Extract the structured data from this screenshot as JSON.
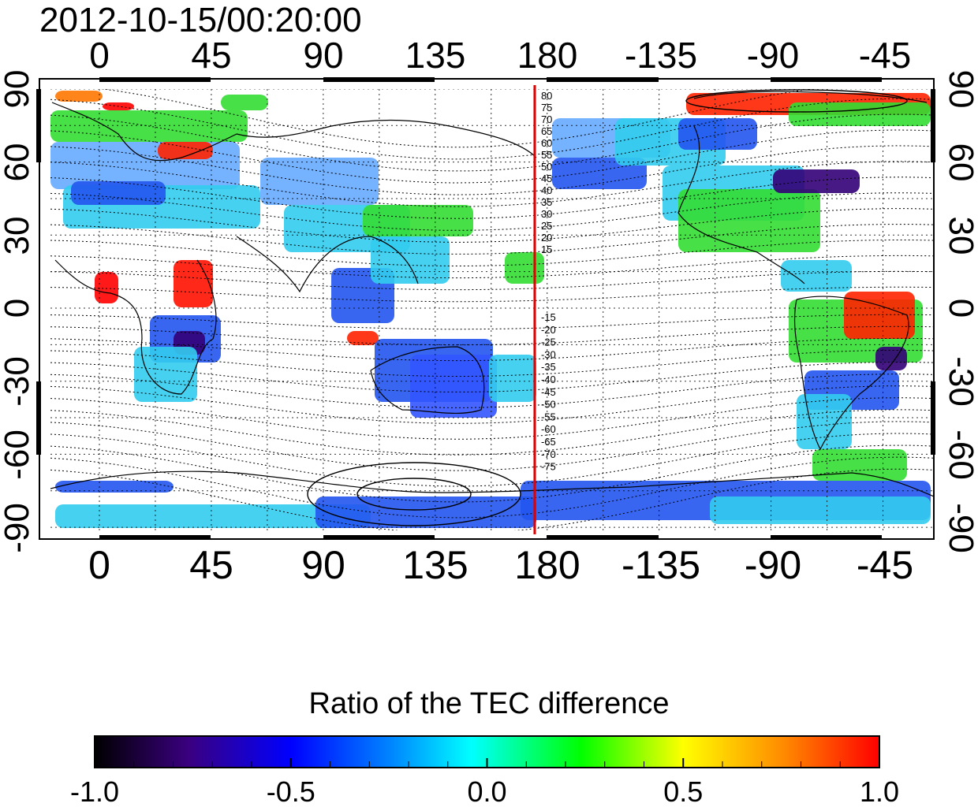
{
  "title": "2012-10-15/00:20:00",
  "axes": {
    "lon_top": [
      "0",
      "45",
      "90",
      "135",
      "180",
      "-135",
      "-90",
      "-45"
    ],
    "lon_bottom": [
      "0",
      "45",
      "90",
      "135",
      "180",
      "-135",
      "-90",
      "-45"
    ],
    "lat_left": [
      "90",
      "60",
      "30",
      "0",
      "-30",
      "-60",
      "-90"
    ],
    "lat_right": [
      "90",
      "60",
      "30",
      "0",
      "-30",
      "-60",
      "-90"
    ]
  },
  "meridian_line": {
    "longitude": 175,
    "color": "#e00000"
  },
  "contour_labels_north": [
    "80",
    "75",
    "70",
    "65",
    "60",
    "55",
    "50",
    "45",
    "40",
    "35",
    "30",
    "25",
    "20",
    "15"
  ],
  "contour_labels_south": [
    "-15",
    "-20",
    "-25",
    "-30",
    "-35",
    "-40",
    "-45",
    "-50",
    "-55",
    "-60",
    "-65",
    "-70",
    "-75"
  ],
  "colorbar": {
    "title": "Ratio of the TEC difference",
    "min": -1.0,
    "max": 1.0,
    "ticks": [
      "-1.0",
      "-0.5",
      "0.0",
      "0.5",
      "1.0"
    ],
    "colormap": [
      "#000000",
      "#3a0080",
      "#0000ff",
      "#00ffff",
      "#00ff00",
      "#ffff00",
      "#ff0000"
    ]
  },
  "colors": {
    "red": "#ff0000",
    "orange": "#ff8800",
    "yellow": "#ffff00",
    "green": "#33dd33",
    "cyan": "#33ccee",
    "lightblue": "#66aaff",
    "blue": "#2255ee",
    "purple": "#330077"
  }
}
